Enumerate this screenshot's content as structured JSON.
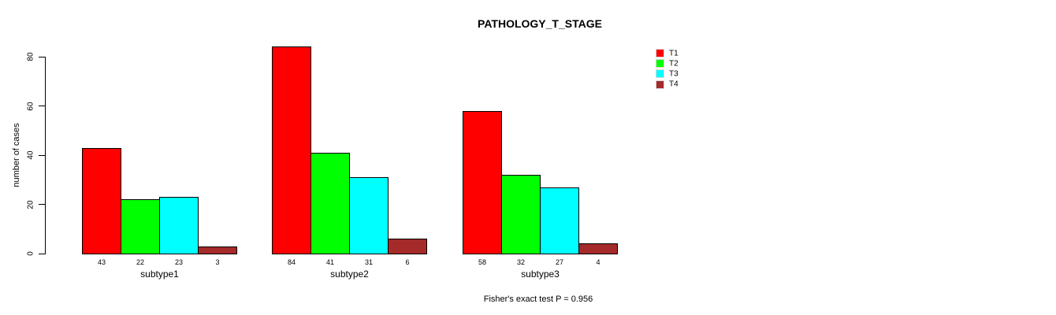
{
  "chart_data": {
    "type": "bar",
    "title": "PATHOLOGY_T_STAGE",
    "categories": [
      "subtype1",
      "subtype2",
      "subtype3"
    ],
    "series": [
      {
        "name": "T1",
        "color": "#FF0000",
        "values": [
          43,
          84,
          58
        ]
      },
      {
        "name": "T2",
        "color": "#00FF00",
        "values": [
          22,
          41,
          32
        ]
      },
      {
        "name": "T3",
        "color": "#00FFFF",
        "values": [
          23,
          31,
          27
        ]
      },
      {
        "name": "T4",
        "color": "#A52A2A",
        "values": [
          3,
          6,
          4
        ]
      }
    ],
    "xlabel": "",
    "ylabel": "number of cases",
    "ylim": [
      0,
      80
    ],
    "yticks": [
      0,
      20,
      40,
      60,
      80
    ],
    "bar_value_labels": [
      [
        43,
        22,
        23,
        3
      ],
      [
        84,
        41,
        31,
        6
      ],
      [
        58,
        32,
        27,
        4
      ]
    ],
    "legend_position": "top-right",
    "grid": false,
    "annotation": "Fisher's exact test P = 0.956"
  }
}
